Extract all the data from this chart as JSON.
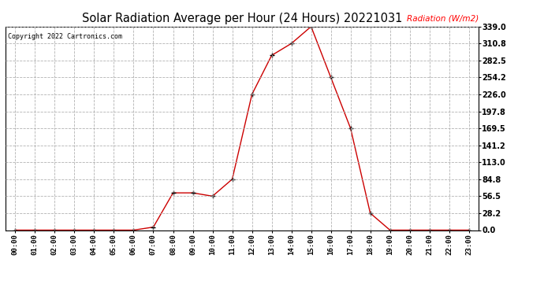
{
  "title": "Solar Radiation Average per Hour (24 Hours) 20221031",
  "copyright_text": "Copyright 2022 Cartronics.com",
  "ylabel": "Radiation (W/m2)",
  "ylabel_color": "#ff0000",
  "title_color": "#000000",
  "copyright_color": "#000000",
  "line_color": "#cc0000",
  "marker_color": "#000000",
  "background_color": "#ffffff",
  "grid_color": "#aaaaaa",
  "hours": [
    "00:00",
    "01:00",
    "02:00",
    "03:00",
    "04:00",
    "05:00",
    "06:00",
    "07:00",
    "08:00",
    "09:00",
    "10:00",
    "11:00",
    "12:00",
    "13:00",
    "14:00",
    "15:00",
    "16:00",
    "17:00",
    "18:00",
    "19:00",
    "20:00",
    "21:00",
    "22:00",
    "23:00"
  ],
  "values": [
    0.0,
    0.0,
    0.0,
    0.0,
    0.0,
    0.0,
    0.0,
    5.0,
    62.0,
    62.0,
    56.5,
    84.8,
    226.0,
    291.0,
    310.8,
    339.0,
    254.2,
    169.5,
    28.2,
    0.0,
    0.0,
    0.0,
    0.0,
    0.0
  ],
  "yticks": [
    0.0,
    28.2,
    56.5,
    84.8,
    113.0,
    141.2,
    169.5,
    197.8,
    226.0,
    254.2,
    282.5,
    310.8,
    339.0
  ],
  "ylim": [
    0.0,
    339.0
  ],
  "figsize": [
    6.9,
    3.75
  ],
  "dpi": 100
}
